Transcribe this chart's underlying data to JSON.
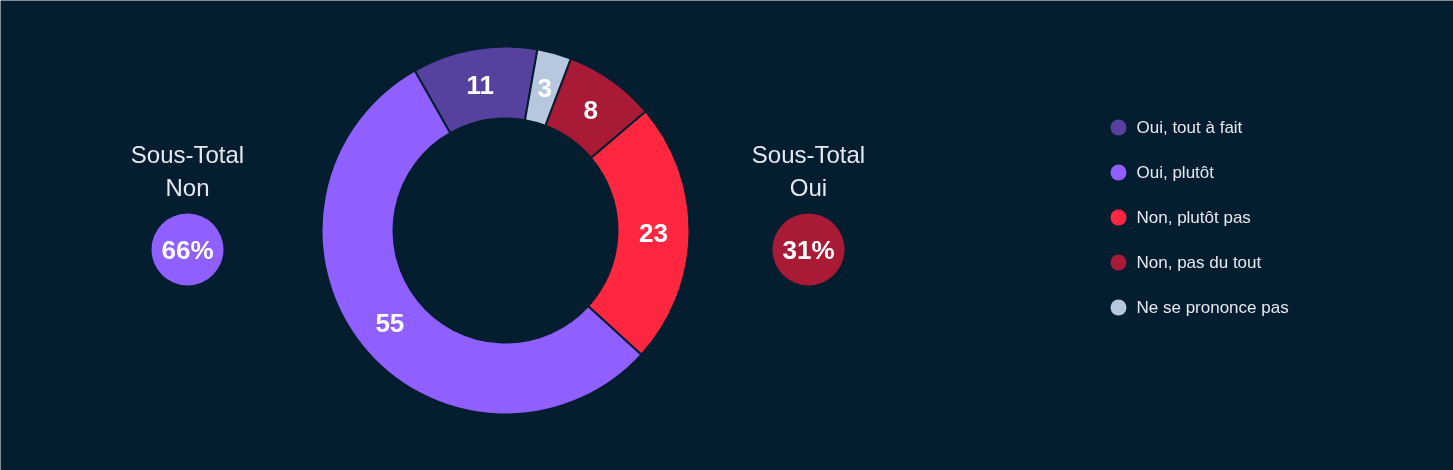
{
  "chart_data": {
    "type": "donut",
    "categories": [
      "Oui, tout à fait",
      "Oui, plutôt",
      "Non, plutôt pas",
      "Non, pas du tout",
      "Ne se prononce pas"
    ],
    "values": [
      11,
      55,
      23,
      8,
      3
    ],
    "colors": [
      "#56419f",
      "#8f5fff",
      "#ff2640",
      "#a81a35",
      "#b7c8de"
    ],
    "data_labels": true,
    "legend": "right",
    "annotations": [
      "Sous-Total Non",
      "66%",
      "Sous-Total Oui",
      "31%"
    ]
  }
}
